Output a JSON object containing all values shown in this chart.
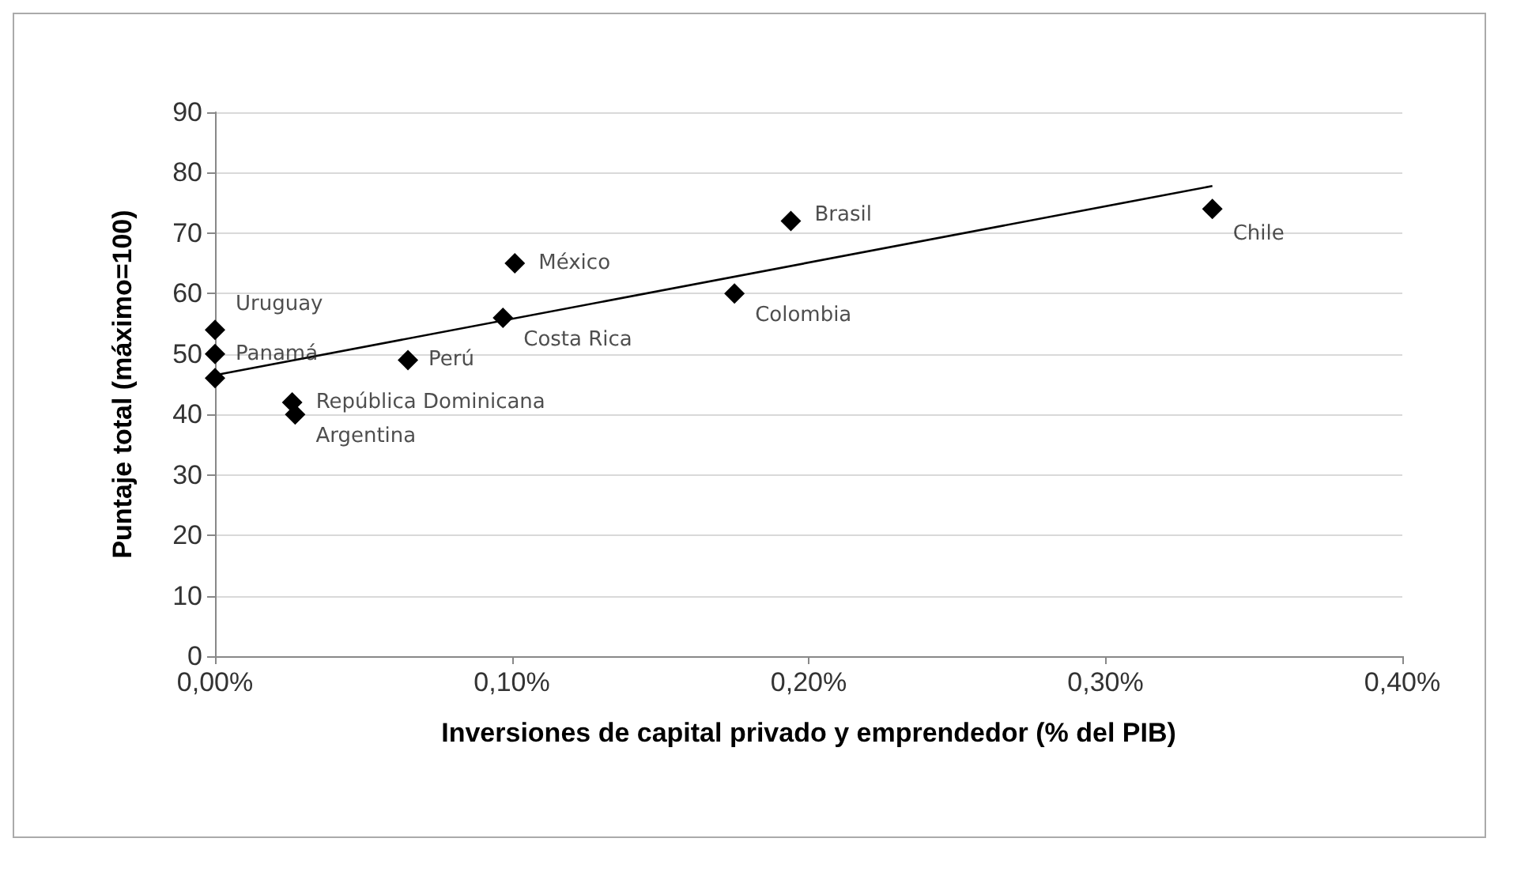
{
  "chart_data": {
    "type": "scatter",
    "xlabel": "Inversiones de capital privado y emprendedor (% del PIB)",
    "ylabel": "Puntaje total (máximo=100)",
    "xlim": [
      0,
      0.4
    ],
    "xticks": [
      {
        "value": 0,
        "label": "0,00%"
      },
      {
        "value": 0.1,
        "label": "0,10%"
      },
      {
        "value": 0.2,
        "label": "0,20%"
      },
      {
        "value": 0.3,
        "label": "0,30%"
      },
      {
        "value": 0.4,
        "label": "0,40%"
      }
    ],
    "ylim": [
      0,
      90
    ],
    "yticks": [
      0,
      10,
      20,
      30,
      40,
      50,
      60,
      70,
      80,
      90
    ],
    "grid": "y",
    "marker": "diamond",
    "series": [
      {
        "color": "#000000",
        "x": [
          0,
          0,
          0,
          0.026,
          0.027,
          0.065,
          0.097,
          0.101,
          0.175,
          0.194,
          0.336
        ],
        "values": [
          54,
          50,
          46,
          42,
          40,
          49,
          56,
          65,
          60,
          72,
          74
        ]
      },
      {
        "type": "line",
        "color": "#000000",
        "marker": "none",
        "x": [
          0,
          0.336
        ],
        "values": [
          46.5,
          77.8
        ]
      }
    ],
    "annotations": [
      {
        "text": "Uruguay",
        "x": 0,
        "y": 54
      },
      {
        "text": "Panamá",
        "x": 0,
        "y": 50
      },
      {
        "text": "República Dominicana",
        "x": 0.026,
        "y": 42
      },
      {
        "text": "Argentina",
        "x": 0.027,
        "y": 40
      },
      {
        "text": "Perú",
        "x": 0.065,
        "y": 49
      },
      {
        "text": "Costa Rica",
        "x": 0.097,
        "y": 56
      },
      {
        "text": "México",
        "x": 0.101,
        "y": 65
      },
      {
        "text": "Colombia",
        "x": 0.175,
        "y": 60
      },
      {
        "text": "Brasil",
        "x": 0.194,
        "y": 72
      },
      {
        "text": "Chile",
        "x": 0.336,
        "y": 74
      }
    ]
  }
}
